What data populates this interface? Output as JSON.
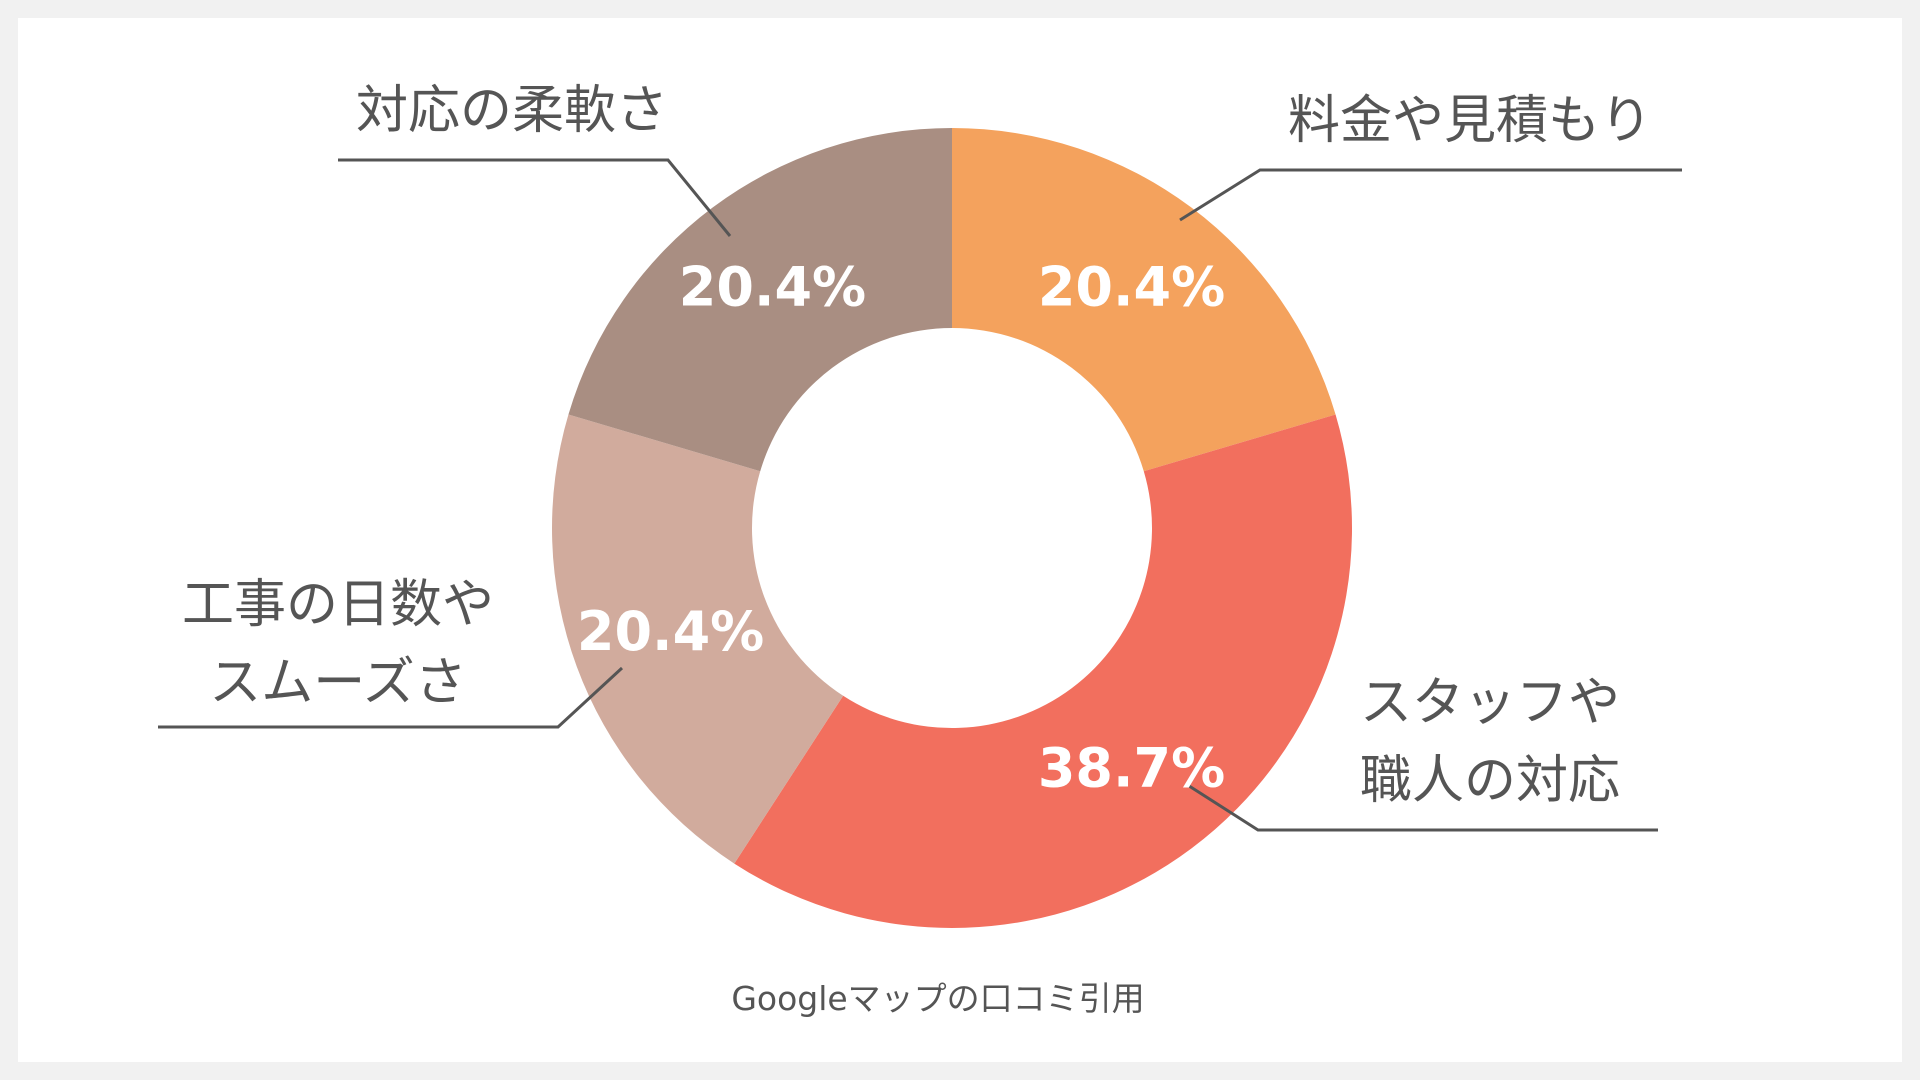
{
  "chart_data": {
    "type": "pie",
    "style": "donut",
    "slices": [
      {
        "label": "料金や見積もり",
        "value": 20.4,
        "display": "20.4%",
        "color": "#F4A25D"
      },
      {
        "label": "スタッフや\n職人の対応",
        "value": 38.7,
        "display": "38.7%",
        "color": "#F26F5E"
      },
      {
        "label": "工事の日数や\nスムーズさ",
        "value": 20.4,
        "display": "20.4%",
        "color": "#D1AB9D"
      },
      {
        "label": "対応の柔軟さ",
        "value": 20.4,
        "display": "20.4%",
        "color": "#A98E82"
      }
    ],
    "caption": "Googleマップの口コミ引用"
  }
}
